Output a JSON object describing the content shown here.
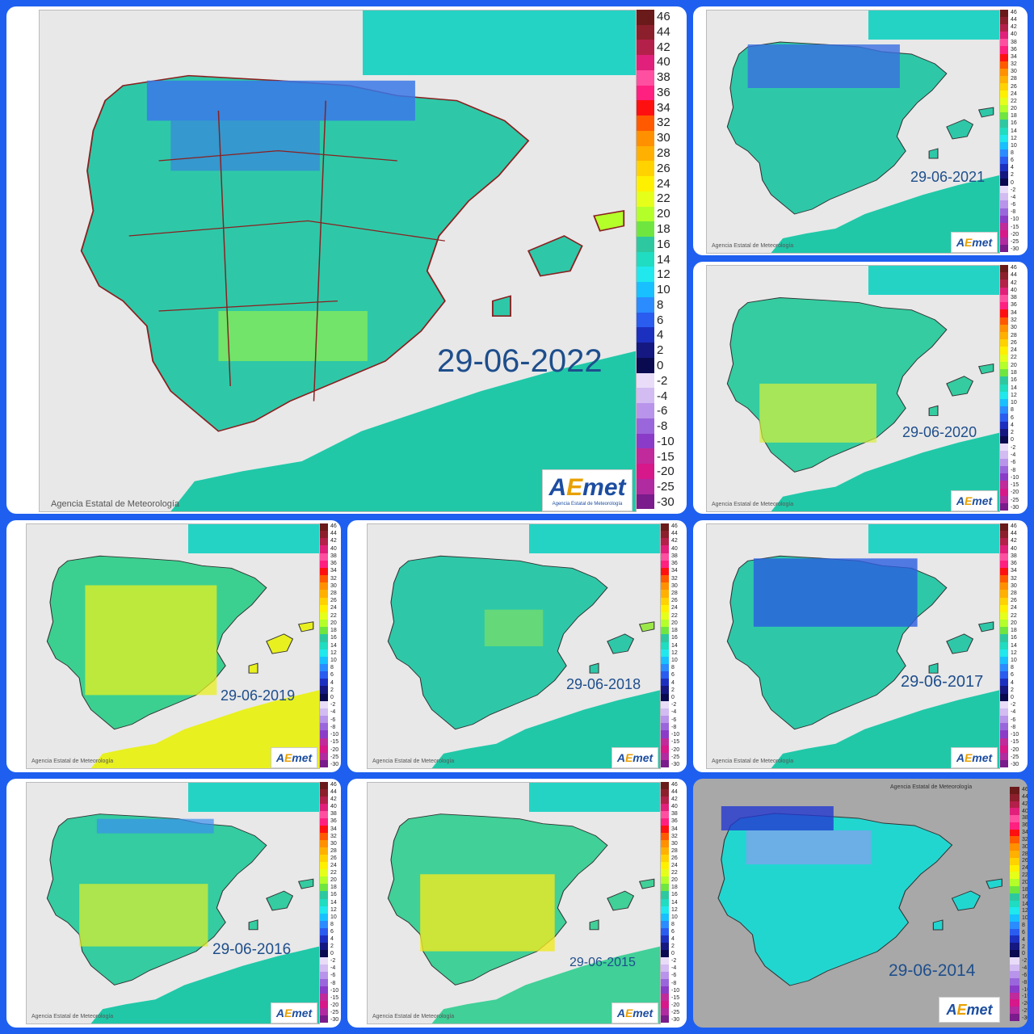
{
  "credit": "Agencia Estatal de Meteorología",
  "logo": {
    "prefix": "A",
    "e": "E",
    "rest": "met",
    "sub": "Agencia Estatal de Meteorología"
  },
  "legend_labels": [
    "46",
    "44",
    "42",
    "40",
    "38",
    "36",
    "34",
    "32",
    "30",
    "28",
    "26",
    "24",
    "22",
    "20",
    "18",
    "16",
    "14",
    "12",
    "10",
    "8",
    "6",
    "4",
    "2",
    "0",
    "-2",
    "-4",
    "-6",
    "-8",
    "-10",
    "-15",
    "-20",
    "-25",
    "-30"
  ],
  "legend_colors": [
    "#6b1a1a",
    "#8c1f2c",
    "#b3204a",
    "#e0207a",
    "#ff4fa0",
    "#ff2080",
    "#ff1010",
    "#ff5a00",
    "#ff9000",
    "#ffb000",
    "#ffd200",
    "#fff000",
    "#e6ff1a",
    "#b4ff2a",
    "#6fe640",
    "#2ec8a0",
    "#20dcc0",
    "#20e8ec",
    "#18c0ff",
    "#2a8cff",
    "#2a5cf0",
    "#1c30c0",
    "#141880",
    "#0a0a50",
    "#e8dcf8",
    "#d2bcf2",
    "#b894ea",
    "#9a66dc",
    "#8a3cc8",
    "#c02a9a",
    "#d6188a",
    "#b02aa0",
    "#7a1c8c"
  ],
  "panels": [
    {
      "id": "2022",
      "date": "29-06-2022",
      "land": "#2ec8a8",
      "blue": "#3a78e8",
      "yellow": "#b4ff2a"
    },
    {
      "id": "2021",
      "date": "29-06-2021",
      "land": "#2ec8a8",
      "blue": "#3a6ee0",
      "yellow": "#7fe860"
    },
    {
      "id": "2020",
      "date": "29-06-2020",
      "land": "#34cca0",
      "blue": "#3a8ef0",
      "yellow": "#d8f03a"
    },
    {
      "id": "2019",
      "date": "29-06-2019",
      "land": "#3cd090",
      "blue": "#2ec0c8",
      "yellow": "#e8f020"
    },
    {
      "id": "2018",
      "date": "29-06-2018",
      "land": "#2ec8a8",
      "blue": "#3aa0f0",
      "yellow": "#9ce84a"
    },
    {
      "id": "2017",
      "date": "29-06-2017",
      "land": "#2ec8a8",
      "blue": "#2a5ce0",
      "yellow": "#8ae050"
    },
    {
      "id": "2016",
      "date": "29-06-2016",
      "land": "#34cca0",
      "blue": "#3a8ef0",
      "yellow": "#e0f02a"
    },
    {
      "id": "2015",
      "date": "29-06-2015",
      "land": "#40d098",
      "blue": "#3aa0f0",
      "yellow": "#f0e820"
    },
    {
      "id": "2014",
      "date": "29-06-2014",
      "land": "#22d6d0",
      "blue": "#2438d0",
      "yellow": "#b4f040"
    }
  ]
}
